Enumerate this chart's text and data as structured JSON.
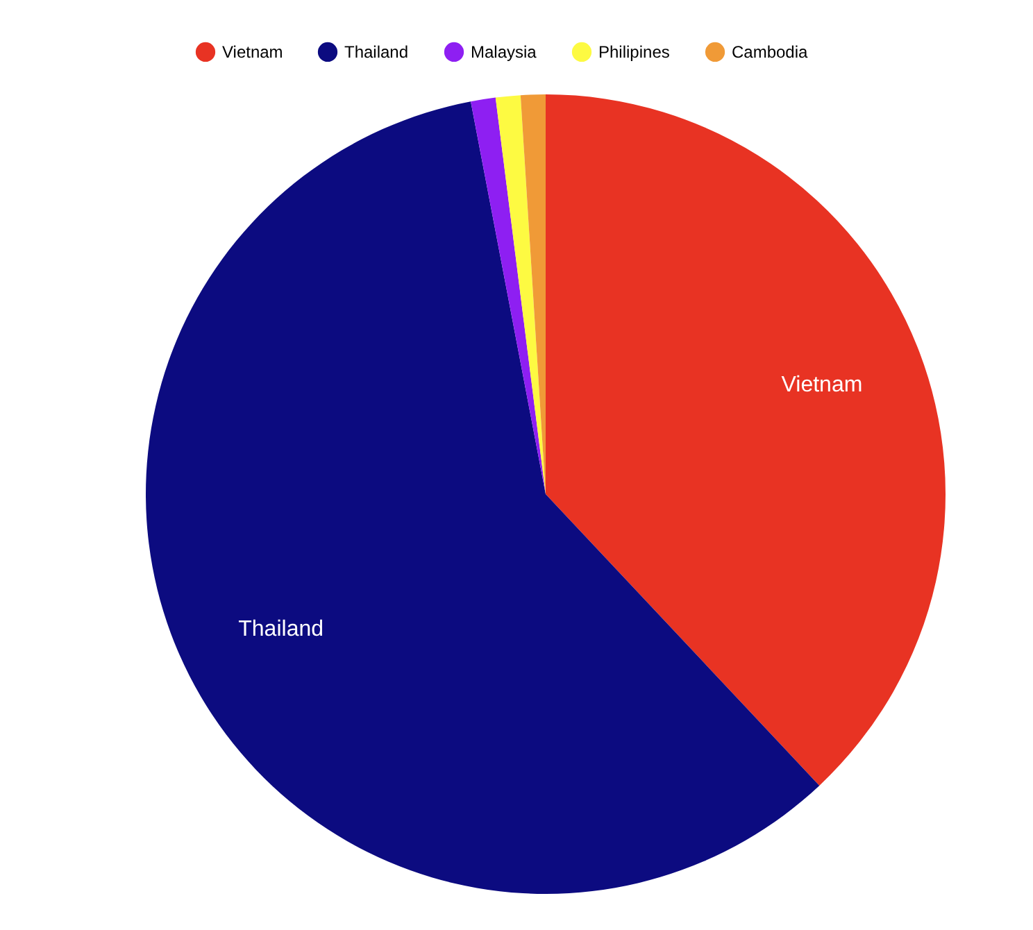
{
  "chart_data": {
    "type": "pie",
    "categories": [
      "Vietnam",
      "Thailand",
      "Malaysia",
      "Philipines",
      "Cambodia"
    ],
    "values": [
      38,
      59,
      1,
      1,
      1
    ],
    "colors": [
      "#e83323",
      "#0c0b80",
      "#8e1ff2",
      "#fdfa42",
      "#f09a37"
    ],
    "legend": "top"
  }
}
